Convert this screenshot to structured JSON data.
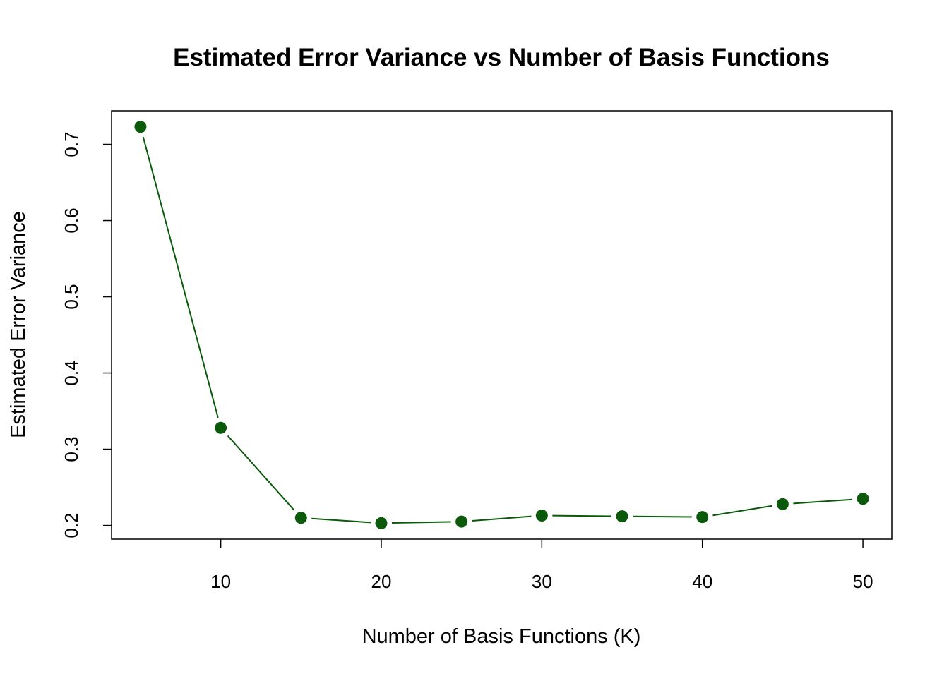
{
  "chart_data": {
    "type": "line",
    "title": "Estimated Error Variance vs Number of Basis Functions",
    "xlabel": "Number of Basis Functions (K)",
    "ylabel": "Estimated Error Variance",
    "x": [
      5,
      10,
      15,
      20,
      25,
      30,
      35,
      40,
      45,
      50
    ],
    "series": [
      {
        "values": [
          0.723,
          0.328,
          0.21,
          0.203,
          0.205,
          0.213,
          0.212,
          0.211,
          0.228,
          0.235
        ]
      }
    ],
    "xlim": [
      3.2,
      51.8
    ],
    "ylim": [
      0.182,
      0.744
    ],
    "x_ticks": [
      10,
      20,
      30,
      40,
      50
    ],
    "x_tick_labels": [
      "10",
      "20",
      "30",
      "40",
      "50"
    ],
    "y_ticks": [
      0.2,
      0.3,
      0.4,
      0.5,
      0.6,
      0.7
    ],
    "y_tick_labels": [
      "0.2",
      "0.3",
      "0.4",
      "0.5",
      "0.6",
      "0.7"
    ],
    "grid": false,
    "legend": "none",
    "style": "points connected by lines",
    "colors": {
      "series": "#0b5a0b",
      "axis": "#000000",
      "background": "#ffffff"
    }
  }
}
